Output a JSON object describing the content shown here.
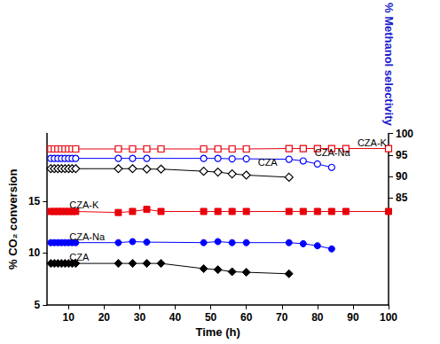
{
  "chart_data": {
    "type": "line",
    "x_label": "Time (h)",
    "y_label": "% CO₂ conversion",
    "y2_label": "% Methanol selectivity",
    "xlim": [
      4,
      100
    ],
    "xticks": [
      10,
      20,
      30,
      40,
      50,
      60,
      70,
      80,
      90,
      100
    ],
    "ylim": [
      5,
      21.5
    ],
    "yticks": [
      5,
      10,
      15
    ],
    "y2lim": [
      60,
      100
    ],
    "y2ticks": [
      85,
      90,
      95,
      100
    ],
    "grid": false,
    "series": [
      {
        "color": "#000000",
        "marker": "diamond",
        "x": [
          5,
          6,
          7,
          8,
          9,
          10,
          11,
          12,
          24,
          28,
          32,
          36,
          48,
          52,
          56,
          60,
          72
        ],
        "values": [
          9.0,
          9.0,
          9.0,
          9.0,
          9.0,
          9.0,
          9.0,
          9.0,
          9.0,
          9.0,
          9.0,
          9.0,
          8.5,
          8.4,
          8.2,
          8.15,
          8.0
        ]
      },
      {
        "color": "#0000ff",
        "marker": "circle",
        "x": [
          5,
          6,
          7,
          8,
          9,
          10,
          11,
          12,
          24,
          28,
          32,
          48,
          52,
          56,
          60,
          72,
          76,
          80,
          84
        ],
        "values": [
          11.0,
          11.0,
          11.0,
          11.0,
          11.0,
          11.0,
          11.0,
          11.0,
          11.0,
          11.1,
          11.05,
          11.0,
          11.1,
          11.0,
          11.0,
          11.0,
          10.9,
          10.7,
          10.4
        ]
      },
      {
        "color": "#e8000b",
        "marker": "square",
        "x": [
          5,
          6,
          7,
          8,
          9,
          10,
          11,
          12,
          24,
          28,
          32,
          36,
          48,
          52,
          56,
          60,
          72,
          76,
          80,
          84,
          88,
          100
        ],
        "values": [
          14.0,
          14.0,
          14.0,
          14.0,
          14.0,
          14.0,
          14.0,
          14.0,
          13.9,
          14.0,
          14.2,
          14.0,
          14.0,
          14.0,
          14.0,
          14.0,
          14.0,
          14.0,
          14.0,
          14.0,
          14.0,
          14.0
        ]
      },
      {
        "color": "#000000",
        "marker": "open_diamond",
        "axis": "y2",
        "x": [
          5,
          6,
          7,
          8,
          9,
          10,
          11,
          12,
          24,
          28,
          32,
          36,
          48,
          52,
          56,
          60,
          72
        ],
        "values": [
          91.8,
          91.8,
          91.8,
          91.8,
          91.8,
          91.8,
          91.8,
          91.8,
          91.8,
          91.8,
          91.7,
          91.7,
          91.2,
          91.0,
          90.6,
          90.3,
          89.8
        ]
      },
      {
        "color": "#0000ff",
        "marker": "open_circle",
        "axis": "y2",
        "x": [
          5,
          6,
          7,
          8,
          9,
          10,
          11,
          12,
          24,
          28,
          32,
          48,
          52,
          56,
          60,
          72,
          76,
          80,
          84
        ],
        "values": [
          94.2,
          94.2,
          94.2,
          94.2,
          94.2,
          94.2,
          94.2,
          94.2,
          94.2,
          94.2,
          94.2,
          94.2,
          94.2,
          94.1,
          94.1,
          94.0,
          93.6,
          92.9,
          92.1
        ]
      },
      {
        "color": "#e8000b",
        "marker": "open_square",
        "axis": "y2",
        "x": [
          5,
          6,
          7,
          8,
          9,
          10,
          11,
          12,
          24,
          28,
          32,
          36,
          48,
          52,
          56,
          60,
          72,
          76,
          80,
          84,
          88,
          100
        ],
        "values": [
          96.4,
          96.4,
          96.4,
          96.4,
          96.4,
          96.4,
          96.4,
          96.4,
          96.4,
          96.4,
          96.4,
          96.4,
          96.4,
          96.4,
          96.4,
          96.4,
          96.5,
          96.5,
          96.5,
          96.5,
          96.5,
          96.5
        ]
      }
    ],
    "annotations": [
      {
        "text": "CZA",
        "x": 9,
        "y": 9.6
      },
      {
        "text": "CZA-Na",
        "x": 9,
        "y": 11.6
      },
      {
        "text": "CZA-K",
        "x": 9,
        "y": 14.6
      },
      {
        "text": "CZA",
        "x": 62,
        "y": 93.2,
        "axis": "y2"
      },
      {
        "text": "CZA-Na",
        "x": 78,
        "y": 95.5,
        "axis": "y2"
      },
      {
        "text": "CZA-K",
        "x": 90,
        "y": 97.8,
        "axis": "y2"
      }
    ]
  }
}
